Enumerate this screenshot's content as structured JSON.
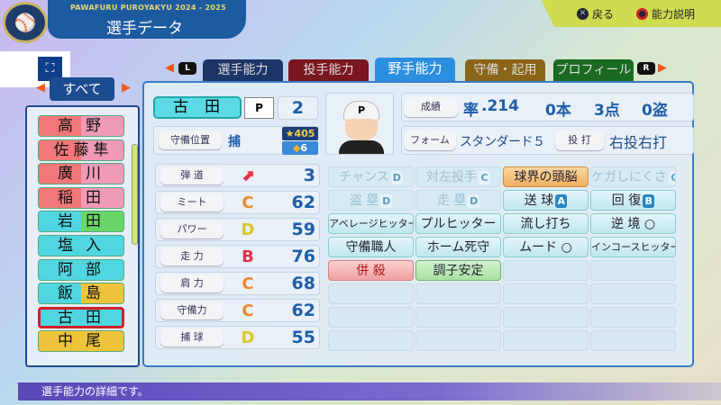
{
  "header": {
    "subtitle": "PAWAFURU PUROYAKYU 2024 - 2025",
    "title": "選手データ",
    "hints": [
      {
        "button": "x-button",
        "label": "戻る"
      },
      {
        "button": "circle-button",
        "label": "能力説明"
      }
    ]
  },
  "tabs": {
    "left_button": "L",
    "right_button": "R",
    "items": [
      {
        "label": "選手能力",
        "color": "#1d3566"
      },
      {
        "label": "投手能力",
        "color": "#7a1620"
      },
      {
        "label": "野手能力",
        "color": "#2b8fe0",
        "active": true
      },
      {
        "label": "守備・起用",
        "color": "#8a6418"
      },
      {
        "label": "プロフィール",
        "color": "#1a6a22"
      }
    ]
  },
  "filter": {
    "label": "すべて"
  },
  "roster": [
    {
      "name": "高野",
      "colors": [
        "#f2777a",
        "#f19ab8"
      ]
    },
    {
      "name": "佐藤隼",
      "colors": [
        "#f2777a",
        "#f19ab8"
      ]
    },
    {
      "name": "廣川",
      "colors": [
        "#f2777a",
        "#f19ab8"
      ]
    },
    {
      "name": "稲田",
      "colors": [
        "#f2777a",
        "#f19ab8"
      ]
    },
    {
      "name": "岩田",
      "colors": [
        "#4fd6e0",
        "#6ad66a"
      ]
    },
    {
      "name": "塩入",
      "colors": [
        "#4fd6e0",
        "#4fd6e0"
      ]
    },
    {
      "name": "阿部",
      "colors": [
        "#4fd6e0",
        "#4fd6e0"
      ]
    },
    {
      "name": "飯島",
      "colors": [
        "#4fd6e0",
        "#f0c43a"
      ]
    },
    {
      "name": "古田",
      "colors": [
        "#4fd6e0",
        "#4fd6e0"
      ],
      "selected": true
    },
    {
      "name": "中尾",
      "colors": [
        "#f0c43a",
        "#f0c43a"
      ]
    }
  ],
  "player": {
    "name": "古田",
    "hand": "P",
    "number": "2",
    "position_label": "守備位置",
    "position": "捕",
    "star": "405",
    "diamond": "6",
    "record_label": "成績",
    "avg_label": "率",
    "avg": ".214",
    "hr": "0本",
    "rbi": "3点",
    "sb": "0盗",
    "form_label": "フォーム",
    "form": "スタンダード５",
    "bt_label": "投 打",
    "bt": "右投右打"
  },
  "stats": [
    {
      "label": "弾 道",
      "grade": "arrow-up-right",
      "value": "3",
      "color": "#e8304a"
    },
    {
      "label": "ミート",
      "grade": "C",
      "value": "62",
      "color": "#e8882a"
    },
    {
      "label": "パワー",
      "grade": "D",
      "value": "59",
      "color": "#d8c82a"
    },
    {
      "label": "走 力",
      "grade": "B",
      "value": "76",
      "color": "#e0304a"
    },
    {
      "label": "肩 力",
      "grade": "C",
      "value": "68",
      "color": "#e8882a"
    },
    {
      "label": "守備力",
      "grade": "C",
      "value": "62",
      "color": "#e8882a"
    },
    {
      "label": "捕 球",
      "grade": "D",
      "value": "55",
      "color": "#d8c82a"
    }
  ],
  "abilities": [
    [
      {
        "label": "チャンス",
        "grade": "D",
        "dim": true
      },
      {
        "label": "対左投手",
        "grade": "C",
        "dim": true
      },
      {
        "label": "球界の頭脳",
        "type": "gold"
      },
      {
        "label": "ケガしにくさ",
        "grade": "C",
        "dim": true
      }
    ],
    [
      {
        "label": "盗 塁",
        "grade": "D",
        "dim": true
      },
      {
        "label": "走 塁",
        "grade": "D",
        "dim": true
      },
      {
        "label": "送 球",
        "grade": "A"
      },
      {
        "label": "回 復",
        "grade": "B"
      }
    ],
    [
      {
        "label": "アベレージヒッター"
      },
      {
        "label": "プルヒッター"
      },
      {
        "label": "流し打ち"
      },
      {
        "label": "逆 境 ○"
      }
    ],
    [
      {
        "label": "守備職人"
      },
      {
        "label": "ホーム死守"
      },
      {
        "label": "ムード ○"
      },
      {
        "label": "インコースヒッター"
      }
    ],
    [
      {
        "label": "併 殺",
        "type": "red"
      },
      {
        "label": "調子安定",
        "type": "green"
      },
      {
        "label": ""
      },
      {
        "label": ""
      }
    ],
    [
      {
        "label": ""
      },
      {
        "label": ""
      },
      {
        "label": ""
      },
      {
        "label": ""
      }
    ],
    [
      {
        "label": ""
      },
      {
        "label": ""
      },
      {
        "label": ""
      },
      {
        "label": ""
      }
    ],
    [
      {
        "label": ""
      },
      {
        "label": ""
      },
      {
        "label": ""
      },
      {
        "label": ""
      }
    ]
  ],
  "footer": {
    "text": "選手能力の詳細です。"
  }
}
